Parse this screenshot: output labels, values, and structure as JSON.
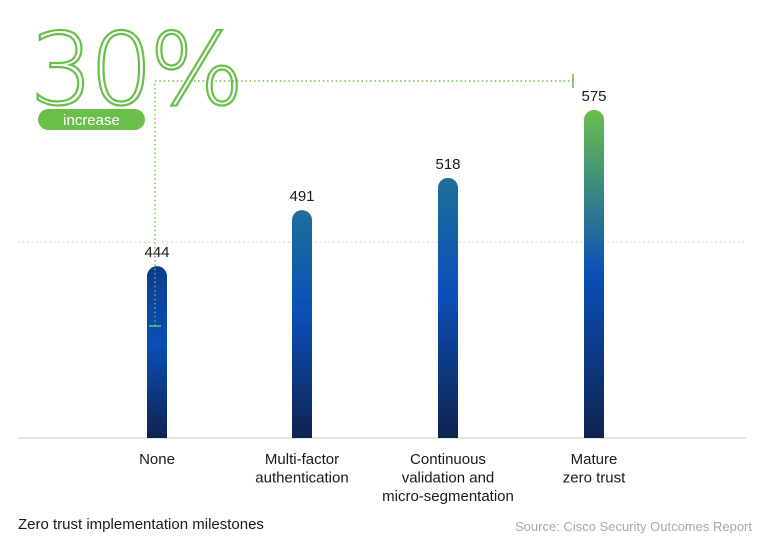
{
  "chart_data": {
    "type": "bar",
    "categories": [
      [
        "None"
      ],
      [
        "Multi-factor",
        "authentication"
      ],
      [
        "Continuous",
        "validation and",
        "micro-segmentation"
      ],
      [
        "Mature",
        "zero trust"
      ]
    ],
    "values": [
      444,
      491,
      518,
      575
    ],
    "data_labels": [
      "444",
      "491",
      "518",
      "575"
    ],
    "ylim": [
      300,
      600
    ],
    "annotation": {
      "big_text": "30%",
      "pill_text": "increase",
      "from_index": 0,
      "to_index": 3
    },
    "grid": "single dotted reference line",
    "title": "",
    "xlabel": "",
    "ylabel": ""
  },
  "footer": {
    "title": "Zero trust implementation milestones",
    "source": "Source: Cisco Security Outcomes Report"
  },
  "colors": {
    "bar_dark": "#0f2350",
    "bar_mid": "#0a4fb8",
    "bar_top_first": "#0d3c8c",
    "bar_top_mid": "#1e6f9a",
    "bar_top_last": "#6abf4b",
    "accent_green": "#6abf4b"
  }
}
